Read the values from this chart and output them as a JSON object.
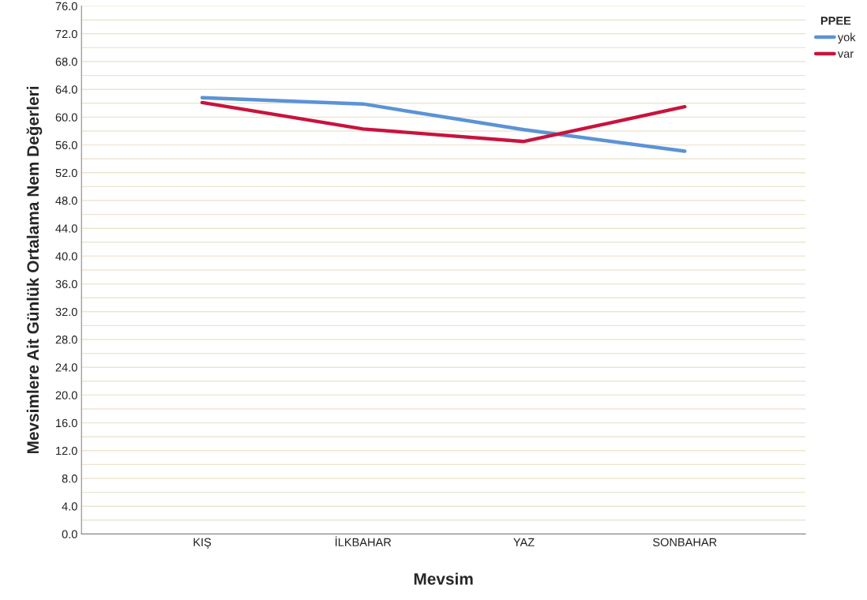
{
  "chart_data": {
    "type": "line",
    "xlabel": "Mevsim",
    "ylabel": "Mevsimlere Ait Günlük Ortalama Nem Değerleri",
    "legend_title": "PPEE",
    "categories": [
      "KIŞ",
      "İLKBAHAR",
      "YAZ",
      "SONBAHAR"
    ],
    "series": [
      {
        "name": "yok",
        "color": "#5b93d6",
        "values": [
          62.8,
          61.9,
          58.2,
          55.1
        ]
      },
      {
        "name": "var",
        "color": "#c8133e",
        "values": [
          62.1,
          58.3,
          56.5,
          61.5
        ]
      }
    ],
    "ylim": [
      0,
      76
    ],
    "yticks": [
      {
        "value": 0,
        "label": "0.0"
      },
      {
        "value": 2,
        "label": null
      },
      {
        "value": 4,
        "label": "4.0"
      },
      {
        "value": 6,
        "label": null
      },
      {
        "value": 8,
        "label": "8.0"
      },
      {
        "value": 10,
        "label": null
      },
      {
        "value": 12,
        "label": "12.0"
      },
      {
        "value": 14,
        "label": null
      },
      {
        "value": 16,
        "label": "16.0"
      },
      {
        "value": 18,
        "label": null
      },
      {
        "value": 20,
        "label": "20.0"
      },
      {
        "value": 22,
        "label": null
      },
      {
        "value": 24,
        "label": "24.0"
      },
      {
        "value": 26,
        "label": null
      },
      {
        "value": 28,
        "label": "28.0"
      },
      {
        "value": 30,
        "label": null
      },
      {
        "value": 32,
        "label": "32.0"
      },
      {
        "value": 34,
        "label": null
      },
      {
        "value": 36,
        "label": "36.0"
      },
      {
        "value": 38,
        "label": null
      },
      {
        "value": 40,
        "label": "40.0"
      },
      {
        "value": 42,
        "label": null
      },
      {
        "value": 44,
        "label": "44.0"
      },
      {
        "value": 46,
        "label": null
      },
      {
        "value": 48,
        "label": "48.0"
      },
      {
        "value": 50,
        "label": null
      },
      {
        "value": 52,
        "label": "52.0"
      },
      {
        "value": 54,
        "label": null
      },
      {
        "value": 56,
        "label": "56.0"
      },
      {
        "value": 58,
        "label": null
      },
      {
        "value": 60,
        "label": "60.0"
      },
      {
        "value": 62,
        "label": null
      },
      {
        "value": 64,
        "label": "64.0"
      },
      {
        "value": 66,
        "label": null
      },
      {
        "value": 68,
        "label": "68.0"
      },
      {
        "value": 70,
        "label": null
      },
      {
        "value": 72,
        "label": "72.0"
      },
      {
        "value": 74,
        "label": null
      },
      {
        "value": 76,
        "label": "76.0"
      }
    ],
    "grid": "y",
    "legend": "top right",
    "marker": "none",
    "line_style": "solid"
  }
}
